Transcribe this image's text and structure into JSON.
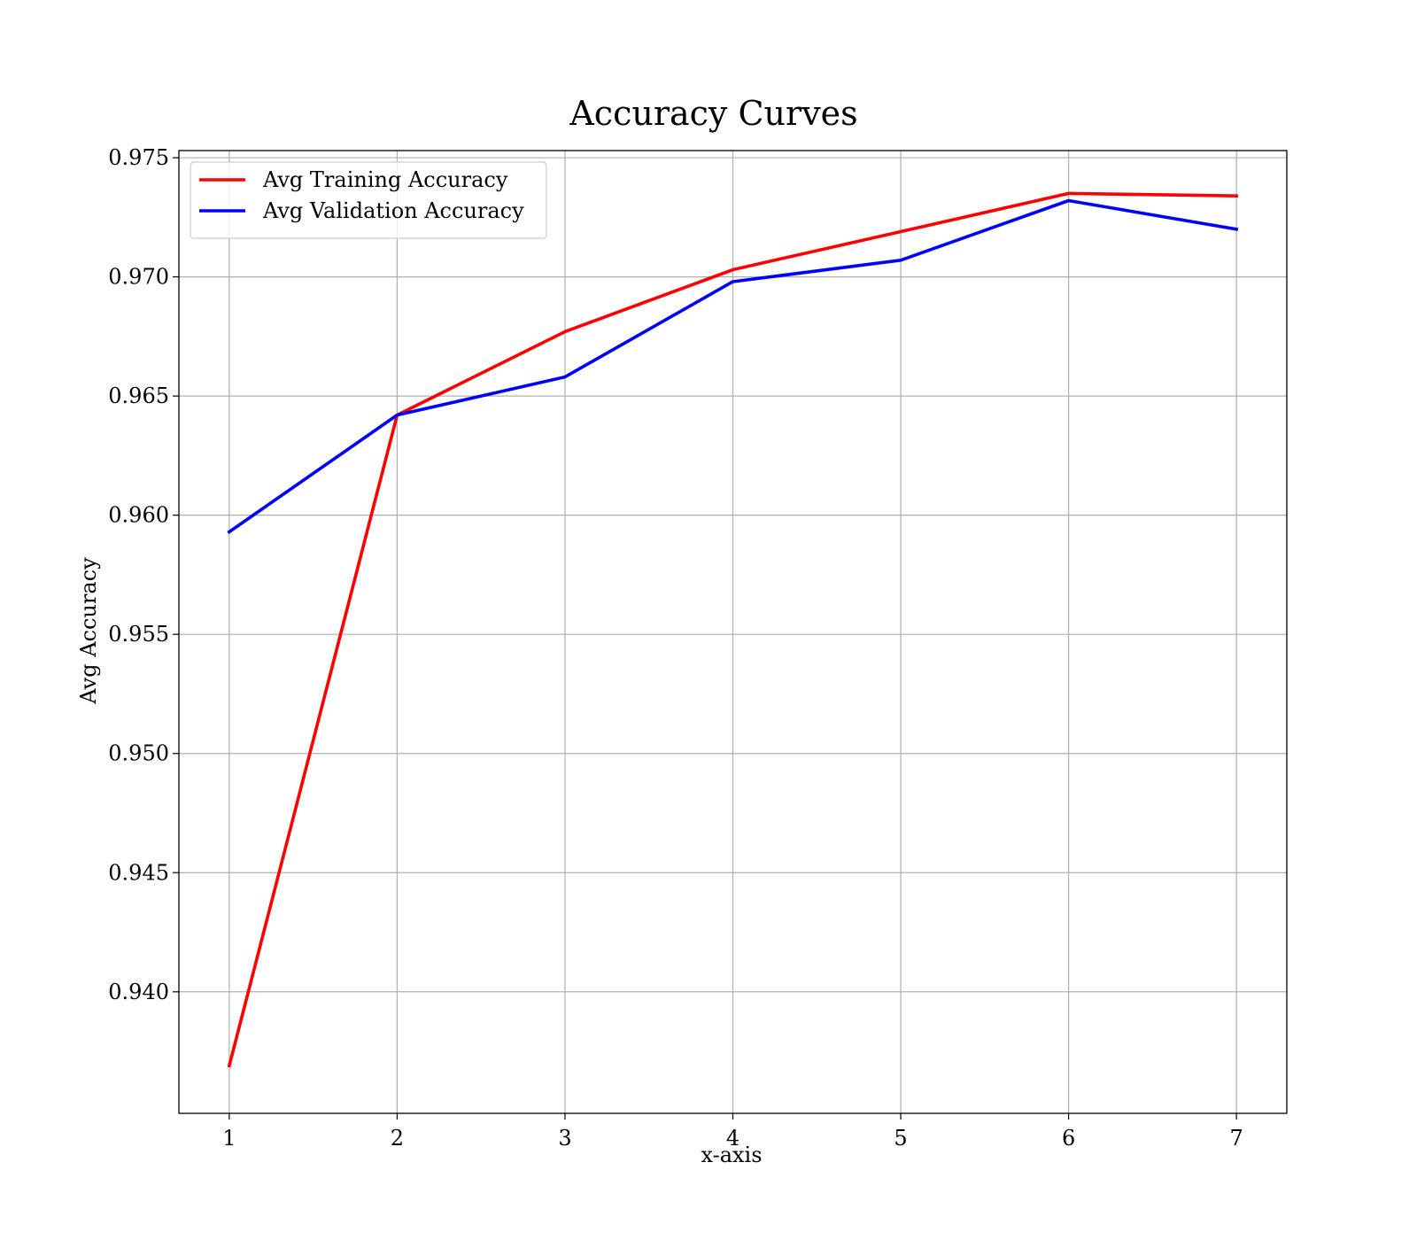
{
  "chart_data": {
    "type": "line",
    "title": "Accuracy Curves",
    "xlabel": "x-axis",
    "ylabel": "Avg Accuracy",
    "x": [
      1,
      2,
      3,
      4,
      5,
      6,
      7
    ],
    "xticks": [
      "1",
      "2",
      "3",
      "4",
      "5",
      "6",
      "7"
    ],
    "yticks": [
      "0.940",
      "0.945",
      "0.950",
      "0.955",
      "0.960",
      "0.965",
      "0.970",
      "0.975"
    ],
    "ytick_values": [
      0.94,
      0.945,
      0.95,
      0.955,
      0.96,
      0.965,
      0.97,
      0.975
    ],
    "xlim": [
      0.7,
      7.3
    ],
    "ylim": [
      0.9349,
      0.9753
    ],
    "grid": true,
    "legend_position": "top-left",
    "series": [
      {
        "name": "Avg Training Accuracy",
        "color": "#ff0000",
        "values": [
          0.9369,
          0.9642,
          0.9677,
          0.9703,
          0.9719,
          0.9735,
          0.9734
        ]
      },
      {
        "name": "Avg Validation Accuracy",
        "color": "#0000ff",
        "values": [
          0.9593,
          0.9642,
          0.9658,
          0.9698,
          0.9707,
          0.9732,
          0.972
        ]
      }
    ]
  }
}
